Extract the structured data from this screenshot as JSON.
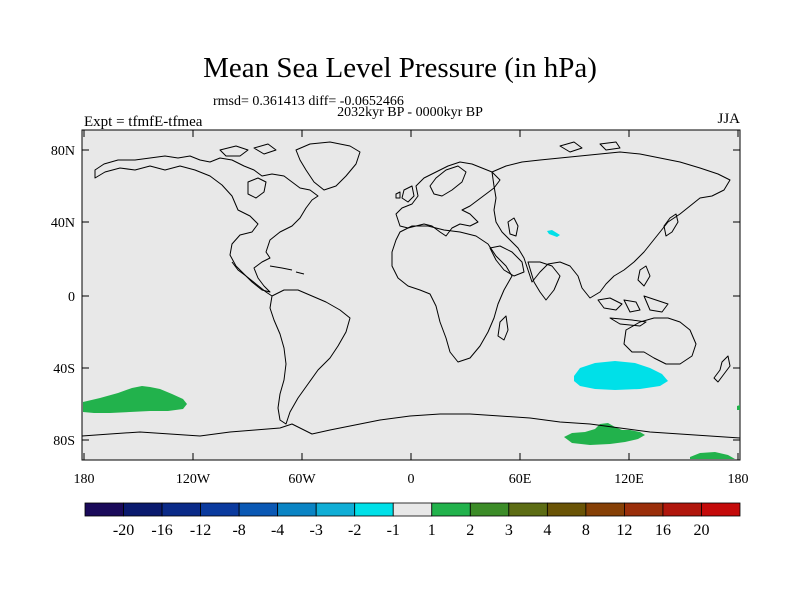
{
  "title": "Mean Sea Level Pressure (in hPa)",
  "stats": "rmsd= 0.361413 diff= -0.0652466",
  "period": "2032kyr BP - 0000kyr BP",
  "experiment": "Expt = tfmfE-tfmea",
  "season": "JJA",
  "map": {
    "background_color": "#e8e8e8",
    "lat_ticks": [
      "80N",
      "40N",
      "0",
      "40S",
      "80S"
    ],
    "lon_ticks": [
      "180",
      "120W",
      "60W",
      "0",
      "60E",
      "120E",
      "180"
    ]
  },
  "anomaly_regions": [
    {
      "name": "south-pacific-positive",
      "color": "#22b24c"
    },
    {
      "name": "south-indian-ocean-negative",
      "color": "#00e0e8"
    },
    {
      "name": "tibet-negative",
      "color": "#00e0e8"
    },
    {
      "name": "antarctic-coast-positive",
      "color": "#22b24c"
    }
  ],
  "colorbar": {
    "colors": [
      "#1a0a5a",
      "#0a1a6e",
      "#0a2a88",
      "#0a3a9e",
      "#0a58b4",
      "#0a84c4",
      "#10aed6",
      "#00e0e8",
      "#e8e8e8",
      "#22b24c",
      "#3c8c28",
      "#5c6c14",
      "#6a5406",
      "#864006",
      "#9a2e0a",
      "#b0160c",
      "#c40a0a"
    ],
    "labels": [
      "-20",
      "-16",
      "-12",
      "-8",
      "-4",
      "-3",
      "-2",
      "-1",
      "1",
      "2",
      "3",
      "4",
      "8",
      "12",
      "16",
      "20"
    ]
  }
}
